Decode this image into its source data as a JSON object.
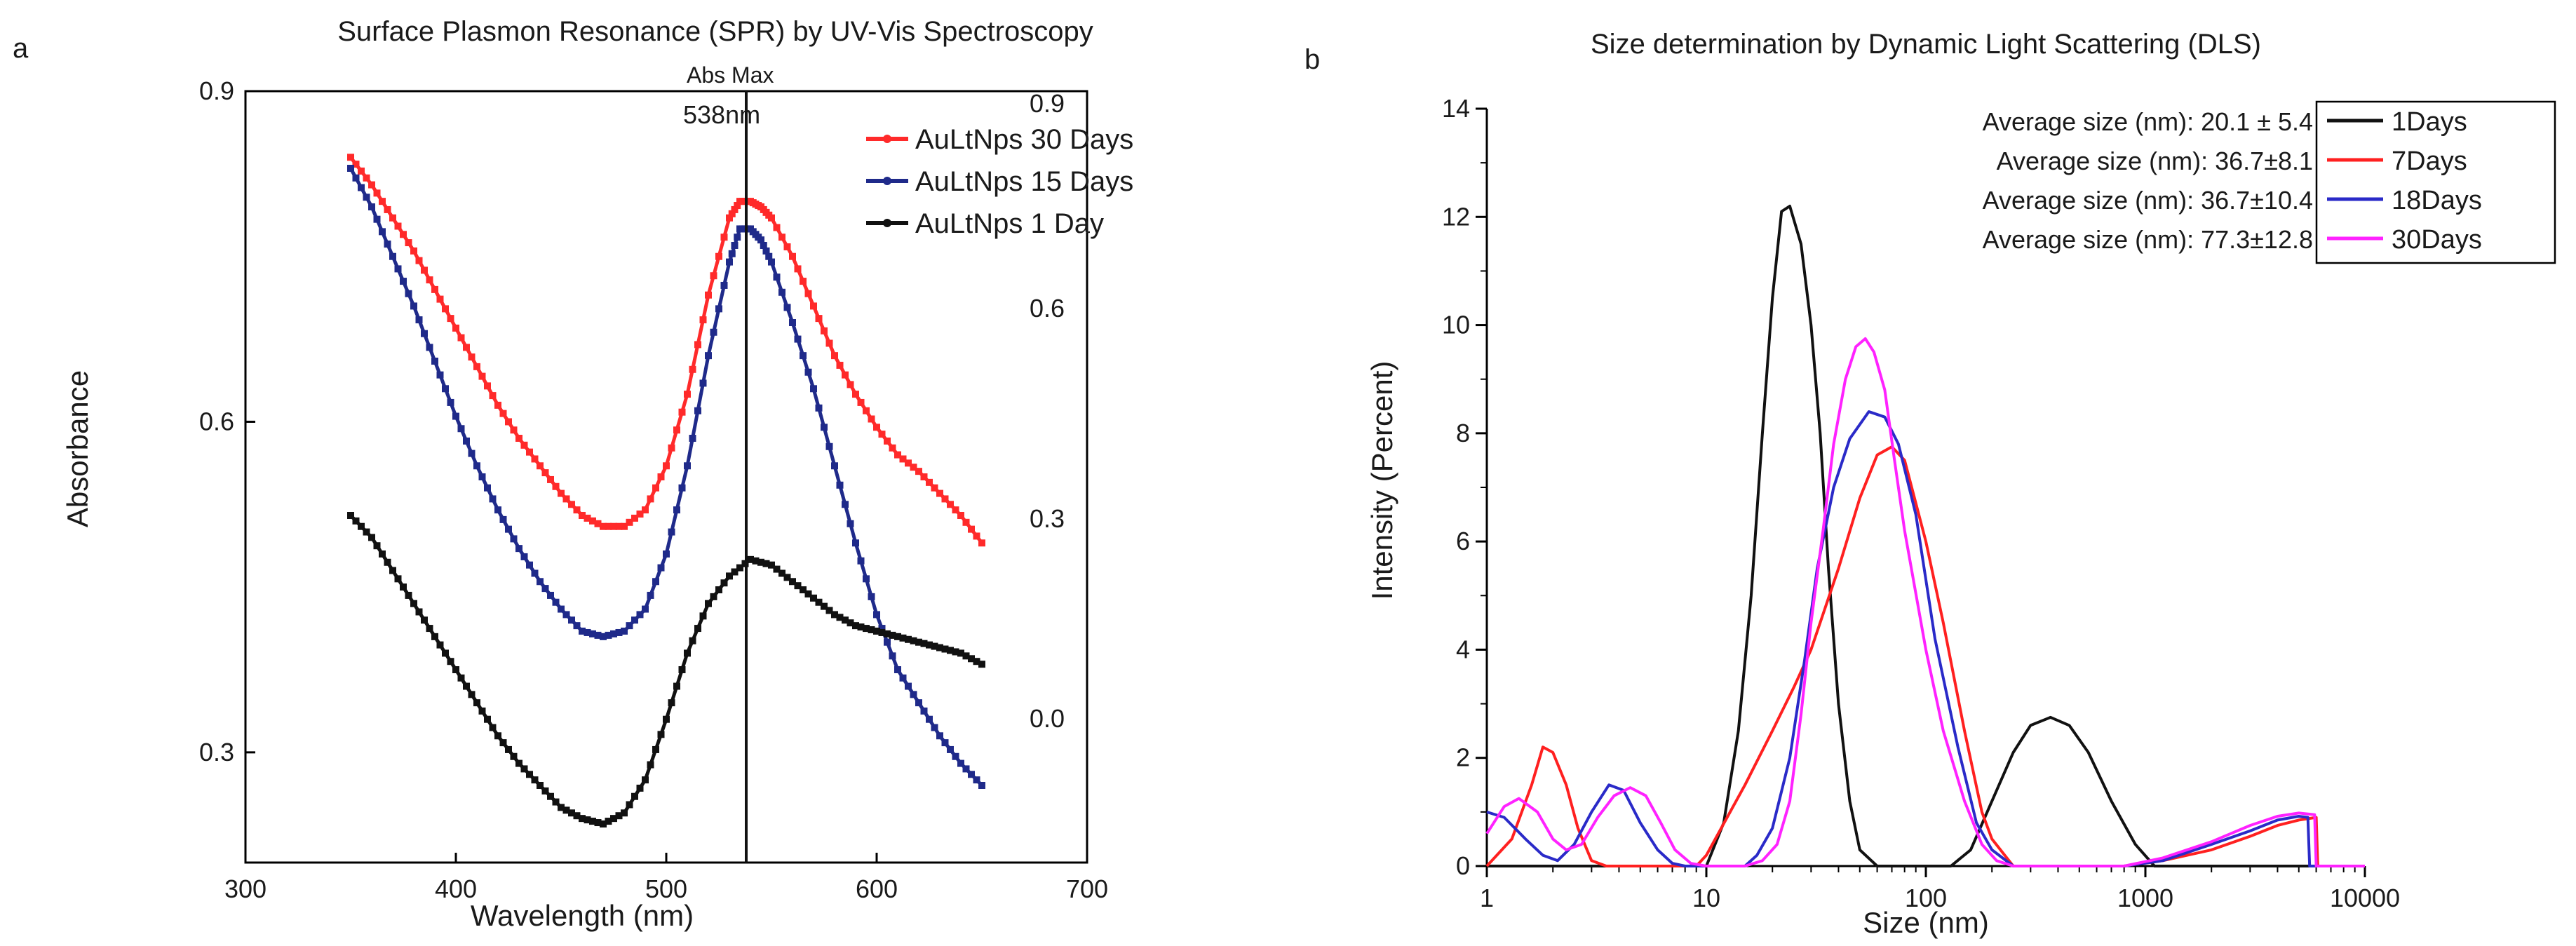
{
  "chart_data": [
    {
      "type": "line",
      "panel_label": "a",
      "title": "Surface Plasmon Resonance (SPR) by UV-Vis Spectroscopy",
      "xlabel": "Wavelength (nm)",
      "ylabel": "Absorbance",
      "xlim": [
        300,
        700
      ],
      "ylim": [
        0.2,
        0.9
      ],
      "xticks": [
        "300",
        "400",
        "500",
        "600",
        "700"
      ],
      "yticks_left": [
        "0.3",
        "0.6",
        "0.9"
      ],
      "yticks_right": [
        "0.0",
        "0.3",
        "0.6",
        "0.9"
      ],
      "annotation": {
        "line1": "Abs Max",
        "line2": "538nm",
        "x": 538
      },
      "legend": [
        "AuLtNps 30 Days",
        "AuLtNps 15 Days",
        "AuLtNps 1 Day"
      ],
      "series": [
        {
          "name": "AuLtNps 30 Days",
          "color": "#ff2a2a",
          "x": [
            350,
            360,
            370,
            380,
            390,
            400,
            410,
            420,
            430,
            440,
            450,
            460,
            470,
            480,
            490,
            500,
            510,
            520,
            530,
            535,
            540,
            545,
            550,
            560,
            570,
            580,
            590,
            600,
            610,
            620,
            630,
            640,
            650
          ],
          "y": [
            0.84,
            0.815,
            0.785,
            0.755,
            0.72,
            0.685,
            0.65,
            0.615,
            0.585,
            0.56,
            0.535,
            0.515,
            0.505,
            0.505,
            0.52,
            0.56,
            0.625,
            0.715,
            0.785,
            0.8,
            0.8,
            0.795,
            0.785,
            0.75,
            0.705,
            0.66,
            0.625,
            0.595,
            0.57,
            0.555,
            0.535,
            0.515,
            0.49
          ]
        },
        {
          "name": "AuLtNps 15 Days",
          "color": "#1f2a8a",
          "x": [
            350,
            360,
            370,
            380,
            390,
            400,
            410,
            420,
            430,
            440,
            450,
            460,
            470,
            480,
            490,
            500,
            510,
            520,
            530,
            535,
            540,
            545,
            550,
            560,
            570,
            580,
            590,
            600,
            610,
            620,
            630,
            640,
            650
          ],
          "y": [
            0.83,
            0.795,
            0.75,
            0.705,
            0.655,
            0.605,
            0.56,
            0.52,
            0.485,
            0.455,
            0.43,
            0.41,
            0.405,
            0.41,
            0.43,
            0.48,
            0.56,
            0.66,
            0.745,
            0.775,
            0.775,
            0.765,
            0.745,
            0.69,
            0.63,
            0.56,
            0.49,
            0.425,
            0.375,
            0.345,
            0.315,
            0.29,
            0.27
          ]
        },
        {
          "name": "AuLtNps 1 Day",
          "color": "#111111",
          "x": [
            350,
            360,
            370,
            380,
            390,
            400,
            410,
            420,
            430,
            440,
            450,
            460,
            470,
            480,
            490,
            500,
            510,
            520,
            530,
            540,
            550,
            560,
            570,
            580,
            590,
            600,
            610,
            620,
            630,
            640,
            650
          ],
          "y": [
            0.515,
            0.495,
            0.465,
            0.435,
            0.405,
            0.375,
            0.345,
            0.315,
            0.29,
            0.27,
            0.25,
            0.24,
            0.235,
            0.245,
            0.275,
            0.33,
            0.39,
            0.435,
            0.46,
            0.475,
            0.47,
            0.455,
            0.44,
            0.425,
            0.415,
            0.41,
            0.405,
            0.4,
            0.395,
            0.39,
            0.38
          ]
        }
      ]
    },
    {
      "type": "line",
      "panel_label": "b",
      "title": "Size determination by Dynamic Light Scattering (DLS)",
      "xlabel": "Size (nm)",
      "ylabel": "Intensity (Percent)",
      "xscale": "log",
      "xlim": [
        1,
        10000
      ],
      "ylim": [
        0,
        14
      ],
      "xticks": [
        "1",
        "10",
        "100",
        "1000",
        "10000"
      ],
      "yticks": [
        "0",
        "2",
        "4",
        "6",
        "8",
        "10",
        "12",
        "14"
      ],
      "legend": [
        "1Days",
        "7Days",
        "18Days",
        "30Days"
      ],
      "size_labels": [
        "Average size (nm): 20.1 ± 5.4",
        "Average size (nm): 36.7±8.1",
        "Average size (nm): 36.7±10.4",
        "Average size (nm): 77.3±12.8"
      ],
      "series": [
        {
          "name": "1Days",
          "color": "#111111",
          "x": [
            1,
            10,
            12,
            14,
            16,
            18,
            20,
            22,
            24,
            27,
            30,
            33,
            36,
            40,
            45,
            50,
            60,
            80,
            100,
            130,
            160,
            200,
            250,
            300,
            370,
            450,
            550,
            700,
            900,
            1100,
            1500,
            3000,
            10000
          ],
          "y": [
            0,
            0,
            0.8,
            2.5,
            5,
            8,
            10.5,
            12.1,
            12.2,
            11.5,
            10,
            8,
            5.5,
            3,
            1.2,
            0.3,
            0,
            0,
            0,
            0,
            0.3,
            1.2,
            2.1,
            2.6,
            2.75,
            2.6,
            2.1,
            1.2,
            0.4,
            0,
            0,
            0,
            0
          ]
        },
        {
          "name": "7Days",
          "color": "#ff2020",
          "x": [
            1,
            1.3,
            1.6,
            1.8,
            2.0,
            2.3,
            2.6,
            3.0,
            3.5,
            9,
            10,
            15,
            20,
            25,
            30,
            40,
            50,
            60,
            70,
            80,
            100,
            120,
            150,
            180,
            200,
            250,
            800,
            1200,
            2000,
            3000,
            4000,
            5000,
            6000,
            6100,
            10000
          ],
          "y": [
            0,
            0.5,
            1.5,
            2.2,
            2.1,
            1.5,
            0.7,
            0.1,
            0,
            0,
            0.2,
            1.5,
            2.5,
            3.3,
            4.0,
            5.5,
            6.8,
            7.6,
            7.75,
            7.5,
            6.0,
            4.5,
            2.5,
            1.0,
            0.5,
            0,
            0,
            0.1,
            0.3,
            0.55,
            0.75,
            0.85,
            0.9,
            0,
            0
          ]
        },
        {
          "name": "18Days",
          "color": "#2a2ac8",
          "x": [
            1,
            1.2,
            1.5,
            1.8,
            2.1,
            2.5,
            3.0,
            3.6,
            4.2,
            5.0,
            6.0,
            7.0,
            8.0,
            15,
            17,
            20,
            24,
            28,
            32,
            38,
            45,
            55,
            65,
            75,
            90,
            110,
            140,
            170,
            200,
            250,
            800,
            1200,
            2000,
            3000,
            4000,
            5000,
            5500,
            5600,
            10000
          ],
          "y": [
            1.0,
            0.9,
            0.5,
            0.2,
            0.1,
            0.4,
            1.0,
            1.5,
            1.4,
            0.8,
            0.3,
            0.05,
            0,
            0,
            0.2,
            0.7,
            2.0,
            3.8,
            5.5,
            7.0,
            7.9,
            8.4,
            8.3,
            7.8,
            6.5,
            4.2,
            2.2,
            0.8,
            0.3,
            0,
            0,
            0.1,
            0.4,
            0.65,
            0.85,
            0.92,
            0.9,
            0,
            0
          ]
        },
        {
          "name": "30Days",
          "color": "#ff22ff",
          "x": [
            1,
            1.2,
            1.4,
            1.7,
            2.0,
            2.3,
            2.7,
            3.2,
            3.8,
            4.5,
            5.3,
            6.2,
            7.2,
            8.5,
            10,
            15,
            18,
            21,
            24,
            27,
            30,
            34,
            38,
            43,
            48,
            53,
            58,
            65,
            72,
            80,
            100,
            120,
            150,
            180,
            210,
            250,
            800,
            1200,
            2000,
            3000,
            4000,
            5000,
            5900,
            6000,
            10000
          ],
          "y": [
            0.6,
            1.1,
            1.25,
            1.0,
            0.5,
            0.3,
            0.4,
            0.9,
            1.3,
            1.45,
            1.3,
            0.8,
            0.3,
            0.05,
            0,
            0,
            0.1,
            0.4,
            1.2,
            2.8,
            4.5,
            6.2,
            7.8,
            9.0,
            9.6,
            9.75,
            9.5,
            8.8,
            7.5,
            6.2,
            4.0,
            2.5,
            1.2,
            0.4,
            0.1,
            0,
            0,
            0.15,
            0.45,
            0.75,
            0.92,
            0.98,
            0.95,
            0,
            0
          ]
        }
      ]
    }
  ]
}
